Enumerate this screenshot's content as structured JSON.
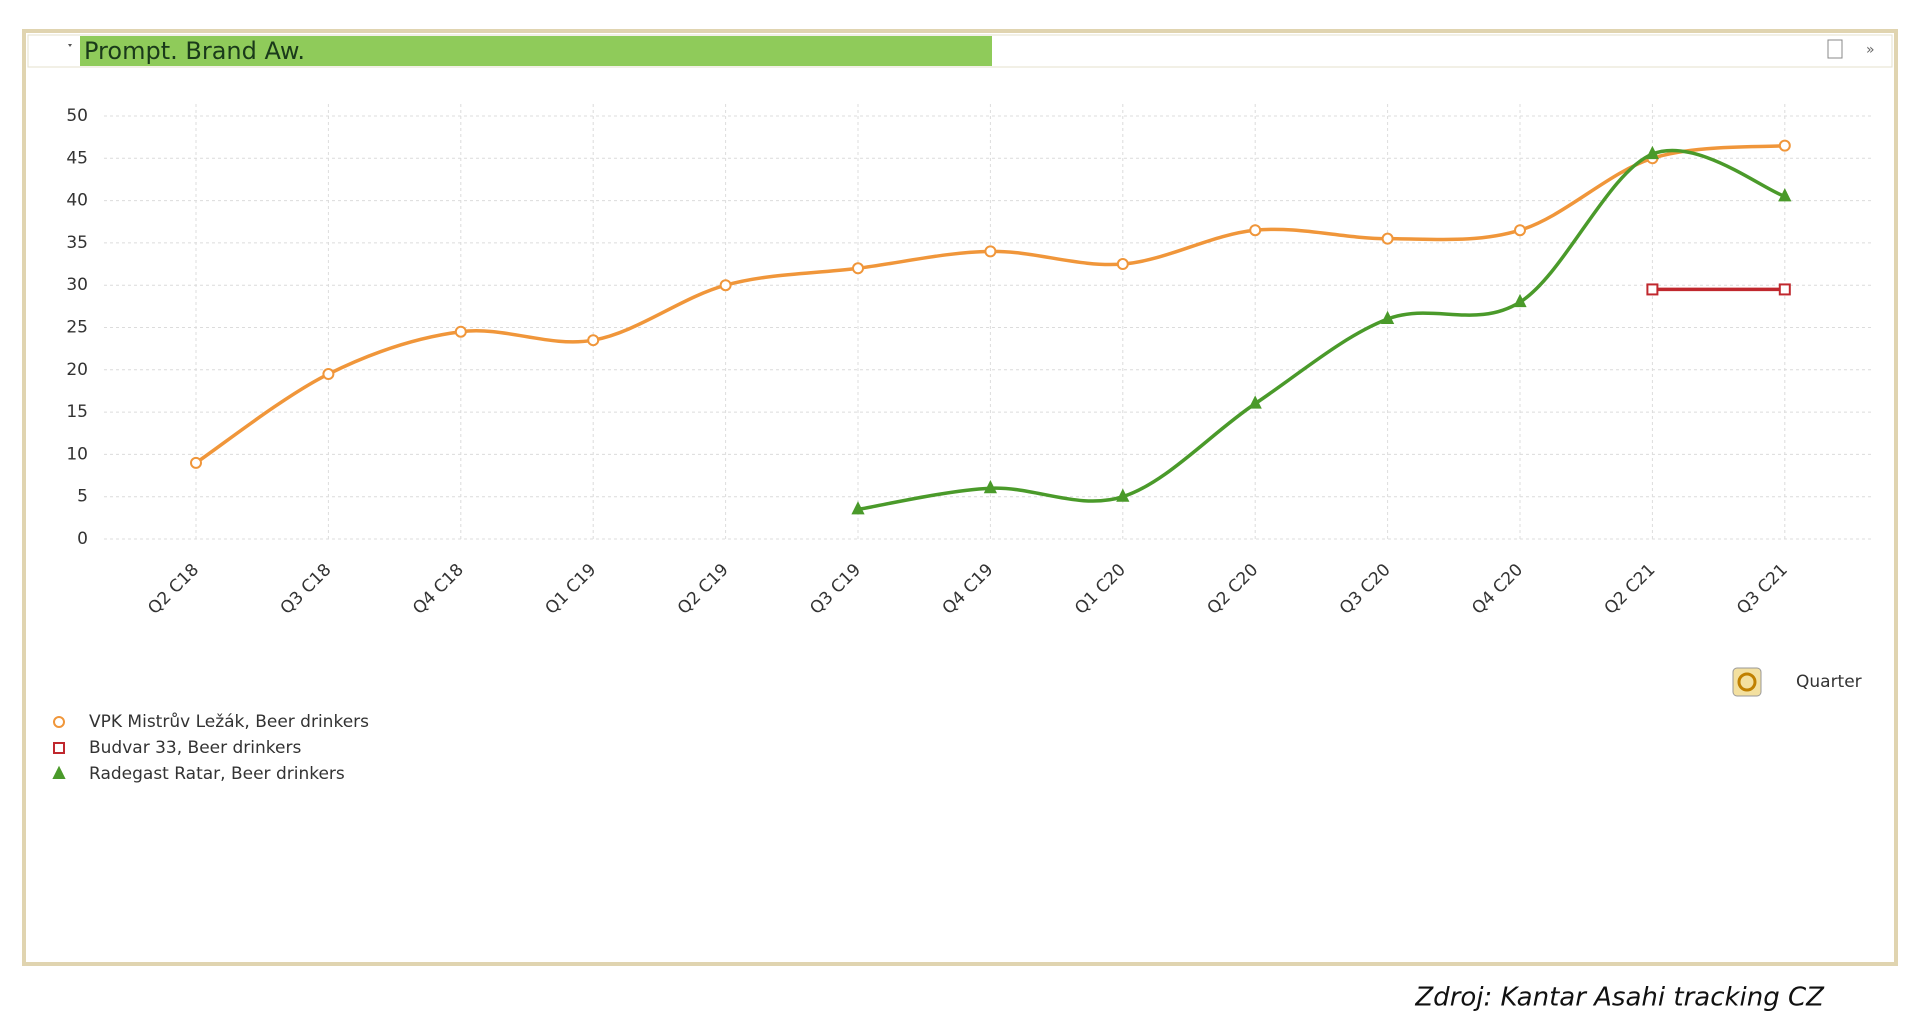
{
  "chart_data": {
    "type": "line",
    "title": "Prompt. Brand Aw.",
    "x_label": "Quarter",
    "source": "Zdroj: Kantar Asahi tracking CZ",
    "categories": [
      "Q2 C18",
      "Q3 C18",
      "Q4 C18",
      "Q1 C19",
      "Q2 C19",
      "Q3 C19",
      "Q4 C19",
      "Q1 C20",
      "Q2 C20",
      "Q3 C20",
      "Q4 C20",
      "Q2 C21",
      "Q3 C21"
    ],
    "series": [
      {
        "name": "VPK Mistrův Ležák, Beer drinkers",
        "color": "#f0963a",
        "marker": "circle",
        "values": [
          9,
          19.5,
          24.5,
          23.5,
          30,
          32,
          34,
          32.5,
          36.5,
          35.5,
          36.5,
          45,
          46.5
        ]
      },
      {
        "name": "Budvar 33, Beer drinkers",
        "color": "#c0282e",
        "marker": "square",
        "values": [
          null,
          null,
          null,
          null,
          null,
          null,
          null,
          null,
          null,
          null,
          null,
          29.5,
          29.5
        ]
      },
      {
        "name": "Radegast Ratar, Beer drinkers",
        "color": "#4a9a2a",
        "marker": "triangle",
        "values": [
          null,
          null,
          null,
          null,
          null,
          3.5,
          6,
          5,
          16,
          26,
          28,
          45.5,
          40.5
        ]
      }
    ],
    "ylim": [
      0,
      50
    ],
    "yticks": [
      0,
      5,
      10,
      15,
      20,
      25,
      30,
      35,
      40,
      45,
      50
    ],
    "grid": true
  }
}
